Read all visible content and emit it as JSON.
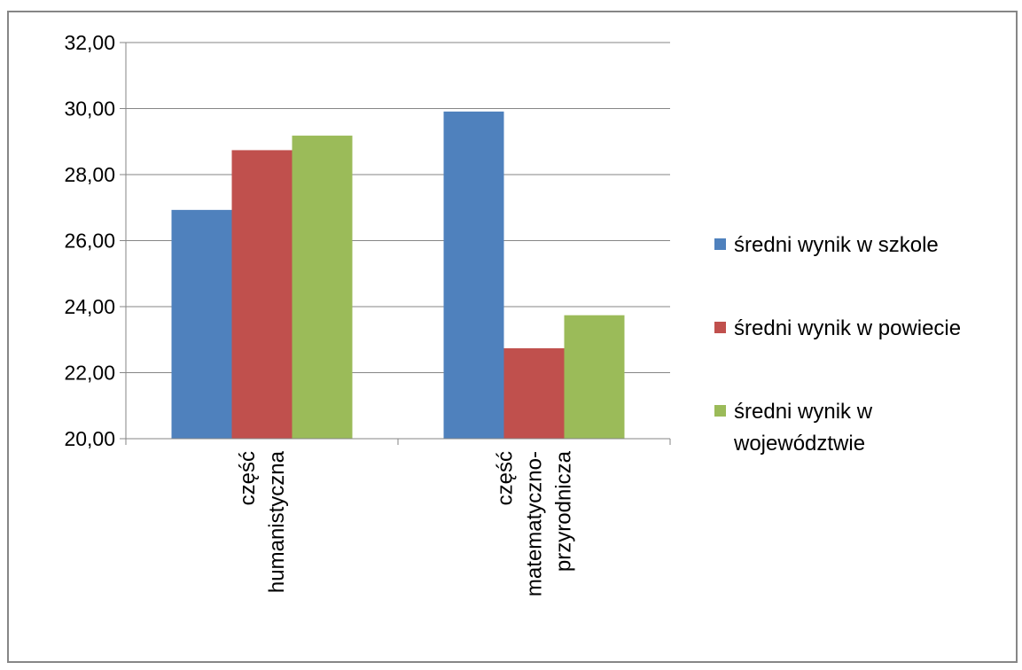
{
  "chart_data": {
    "type": "bar",
    "categories": [
      [
        "część",
        "humanistyczna"
      ],
      [
        "część",
        "matematyczno-",
        "przyrodnicza"
      ]
    ],
    "series": [
      {
        "name": "średni wynik w szkole",
        "legend_lines": [
          "średni wynik w szkole"
        ],
        "color": "#4F81BD",
        "values": [
          26.93,
          29.91
        ]
      },
      {
        "name": "średni wynik w powiecie",
        "legend_lines": [
          "średni wynik w powiecie"
        ],
        "color": "#C0504D",
        "values": [
          28.74,
          22.74
        ]
      },
      {
        "name": "średni wynik w województwie",
        "legend_lines": [
          "średni wynik w",
          "województwie"
        ],
        "color": "#9BBB59",
        "values": [
          29.18,
          23.74
        ]
      }
    ],
    "ylim": [
      20,
      32
    ],
    "y_ticks": [
      20,
      22,
      24,
      26,
      28,
      30,
      32
    ],
    "y_tick_labels": [
      "20,00",
      "22,00",
      "24,00",
      "26,00",
      "28,00",
      "30,00",
      "32,00"
    ],
    "grid": true,
    "legend_position": "right",
    "title": "",
    "xlabel": "",
    "ylabel": "",
    "gridline_color": "#868686"
  }
}
